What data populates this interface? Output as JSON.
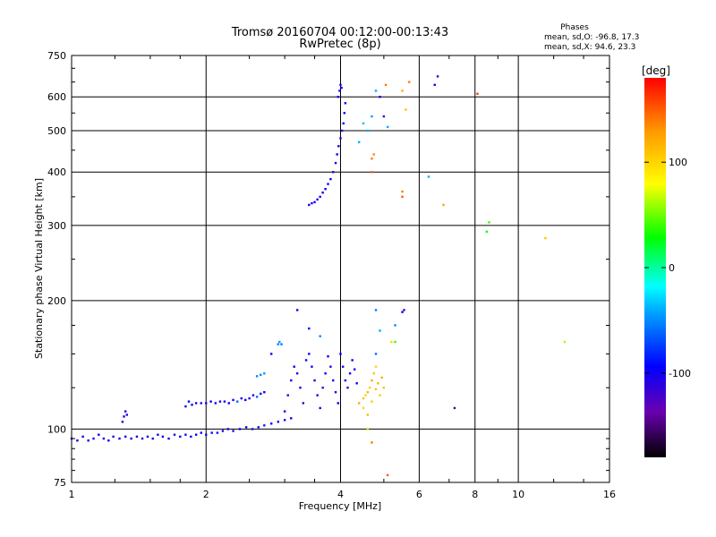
{
  "chart_data": {
    "type": "scatter",
    "title": "Tromsø 20160704 00:12:00-00:13:43",
    "subtitle": "RwPretec (8p)",
    "stats_title": "Phases",
    "stats_line1": "mean, sd,O: -96.8, 17.3",
    "stats_line2": "mean, sd,X:  94.6, 23.3",
    "xlabel": "Frequency [MHz]",
    "ylabel": "Stationary phase Virtual Height [km]",
    "xscale": "log",
    "yscale": "log",
    "xlim": [
      1,
      16
    ],
    "ylim": [
      75,
      750
    ],
    "x_ticks": [
      {
        "v": 1,
        "label": "1"
      },
      {
        "v": 2,
        "label": "2"
      },
      {
        "v": 4,
        "label": "4"
      },
      {
        "v": 6,
        "label": "6"
      },
      {
        "v": 8,
        "label": "8"
      },
      {
        "v": 10,
        "label": "10"
      },
      {
        "v": 16,
        "label": "16"
      }
    ],
    "y_ticks": [
      {
        "v": 75,
        "label": "75"
      },
      {
        "v": 100,
        "label": "100"
      },
      {
        "v": 200,
        "label": "200"
      },
      {
        "v": 300,
        "label": "300"
      },
      {
        "v": 400,
        "label": "400"
      },
      {
        "v": 500,
        "label": "500"
      },
      {
        "v": 600,
        "label": "600"
      },
      {
        "v": 750,
        "label": "750"
      }
    ],
    "grid": true,
    "colorbar": {
      "label": "[deg]",
      "range": [
        -180,
        180
      ],
      "ticks": [
        {
          "v": 100,
          "label": "100"
        },
        {
          "v": 0,
          "label": "0"
        },
        {
          "v": -100,
          "label": "-100"
        }
      ]
    },
    "points": [
      [
        1.0,
        95,
        -105
      ],
      [
        1.03,
        94,
        -100
      ],
      [
        1.06,
        96,
        -95
      ],
      [
        1.09,
        94,
        -110
      ],
      [
        1.12,
        95,
        -100
      ],
      [
        1.15,
        97,
        -95
      ],
      [
        1.18,
        95,
        -105
      ],
      [
        1.21,
        94,
        -100
      ],
      [
        1.24,
        96,
        -110
      ],
      [
        1.28,
        95,
        -95
      ],
      [
        1.32,
        96,
        -100
      ],
      [
        1.36,
        95,
        -105
      ],
      [
        1.4,
        96,
        -100
      ],
      [
        1.44,
        95,
        -110
      ],
      [
        1.48,
        96,
        -95
      ],
      [
        1.52,
        95,
        -100
      ],
      [
        1.56,
        97,
        -105
      ],
      [
        1.6,
        96,
        -100
      ],
      [
        1.65,
        95,
        -95
      ],
      [
        1.7,
        97,
        -110
      ],
      [
        1.75,
        96,
        -100
      ],
      [
        1.8,
        97,
        -105
      ],
      [
        1.85,
        96,
        -100
      ],
      [
        1.9,
        97,
        -95
      ],
      [
        1.95,
        98,
        -100
      ],
      [
        2.0,
        97,
        -105
      ],
      [
        2.06,
        98,
        -100
      ],
      [
        2.12,
        98,
        -90
      ],
      [
        2.18,
        99,
        -100
      ],
      [
        2.24,
        100,
        -95
      ],
      [
        2.3,
        99,
        -110
      ],
      [
        2.38,
        100,
        -100
      ],
      [
        2.46,
        101,
        -95
      ],
      [
        2.54,
        100,
        -105
      ],
      [
        2.62,
        101,
        -90
      ],
      [
        2.7,
        102,
        -85
      ],
      [
        2.8,
        103,
        -100
      ],
      [
        2.9,
        104,
        -95
      ],
      [
        3.0,
        105,
        -105
      ],
      [
        3.1,
        106,
        -100
      ],
      [
        1.3,
        104,
        -100
      ],
      [
        1.31,
        107,
        -105
      ],
      [
        1.32,
        110,
        -100
      ],
      [
        1.33,
        108,
        -110
      ],
      [
        1.8,
        113,
        -100
      ],
      [
        1.83,
        116,
        -95
      ],
      [
        1.86,
        114,
        -105
      ],
      [
        1.9,
        115,
        -100
      ],
      [
        1.95,
        115,
        -110
      ],
      [
        2.0,
        115,
        -100
      ],
      [
        2.05,
        116,
        -95
      ],
      [
        2.1,
        115,
        -100
      ],
      [
        2.15,
        116,
        -105
      ],
      [
        2.2,
        116,
        -100
      ],
      [
        2.25,
        115,
        -95
      ],
      [
        2.3,
        117,
        -100
      ],
      [
        2.35,
        116,
        -60
      ],
      [
        2.4,
        118,
        -100
      ],
      [
        2.45,
        117,
        -95
      ],
      [
        2.5,
        118,
        -105
      ],
      [
        2.55,
        120,
        -100
      ],
      [
        2.6,
        119,
        -60
      ],
      [
        2.65,
        121,
        -100
      ],
      [
        2.7,
        122,
        -95
      ],
      [
        2.6,
        133,
        -50
      ],
      [
        2.65,
        134,
        -50
      ],
      [
        2.7,
        135,
        -45
      ],
      [
        2.8,
        150,
        -100
      ],
      [
        2.9,
        158,
        -50
      ],
      [
        2.92,
        160,
        -45
      ],
      [
        2.95,
        158,
        -55
      ],
      [
        3.0,
        110,
        -100
      ],
      [
        3.05,
        120,
        -110
      ],
      [
        3.1,
        130,
        -100
      ],
      [
        3.15,
        140,
        -95
      ],
      [
        3.2,
        135,
        -105
      ],
      [
        3.25,
        125,
        -100
      ],
      [
        3.3,
        115,
        -120
      ],
      [
        3.35,
        145,
        -100
      ],
      [
        3.4,
        150,
        -95
      ],
      [
        3.45,
        140,
        -105
      ],
      [
        3.5,
        130,
        -100
      ],
      [
        3.55,
        120,
        -110
      ],
      [
        3.6,
        112,
        -100
      ],
      [
        3.65,
        125,
        -120
      ],
      [
        3.7,
        135,
        -100
      ],
      [
        3.75,
        148,
        -95
      ],
      [
        3.8,
        140,
        -105
      ],
      [
        3.85,
        130,
        -100
      ],
      [
        3.9,
        122,
        -110
      ],
      [
        3.95,
        115,
        -100
      ],
      [
        4.0,
        150,
        -95
      ],
      [
        4.05,
        140,
        -105
      ],
      [
        4.1,
        130,
        -100
      ],
      [
        4.15,
        125,
        -110
      ],
      [
        4.2,
        135,
        -100
      ],
      [
        4.25,
        145,
        -95
      ],
      [
        4.3,
        138,
        -105
      ],
      [
        4.35,
        128,
        -100
      ],
      [
        3.2,
        190,
        -100
      ],
      [
        3.4,
        172,
        -95
      ],
      [
        3.6,
        165,
        -50
      ],
      [
        4.4,
        115,
        120
      ],
      [
        4.5,
        118,
        110
      ],
      [
        4.55,
        120,
        100
      ],
      [
        4.6,
        122,
        115
      ],
      [
        4.65,
        125,
        105
      ],
      [
        4.7,
        130,
        120
      ],
      [
        4.75,
        135,
        110
      ],
      [
        4.8,
        140,
        100
      ],
      [
        4.85,
        128,
        115
      ],
      [
        4.9,
        120,
        105
      ],
      [
        4.95,
        132,
        120
      ],
      [
        5.0,
        125,
        110
      ],
      [
        4.5,
        112,
        100
      ],
      [
        4.6,
        108,
        115
      ],
      [
        4.7,
        116,
        105
      ],
      [
        4.8,
        124,
        110
      ],
      [
        4.7,
        93,
        140
      ],
      [
        4.6,
        100,
        60
      ],
      [
        5.2,
        160,
        100
      ],
      [
        5.1,
        78,
        150
      ],
      [
        4.8,
        150,
        -60
      ],
      [
        4.9,
        170,
        -40
      ],
      [
        5.3,
        160,
        40
      ],
      [
        5.3,
        175,
        -50
      ],
      [
        4.8,
        190,
        -55
      ],
      [
        5.5,
        188,
        -100
      ],
      [
        5.55,
        190,
        -110
      ],
      [
        7.2,
        112,
        -150
      ],
      [
        8.5,
        290,
        30
      ],
      [
        8.6,
        305,
        40
      ],
      [
        11.5,
        280,
        110
      ],
      [
        12.7,
        160,
        60
      ],
      [
        3.4,
        335,
        -100
      ],
      [
        3.45,
        338,
        -105
      ],
      [
        3.5,
        340,
        -95
      ],
      [
        3.55,
        345,
        -100
      ],
      [
        3.6,
        350,
        -110
      ],
      [
        3.65,
        358,
        -100
      ],
      [
        3.7,
        365,
        -95
      ],
      [
        3.75,
        375,
        -105
      ],
      [
        3.8,
        385,
        -100
      ],
      [
        3.85,
        400,
        -110
      ],
      [
        3.9,
        420,
        -100
      ],
      [
        3.93,
        440,
        -95
      ],
      [
        3.96,
        460,
        -105
      ],
      [
        4.0,
        480,
        -100
      ],
      [
        4.03,
        500,
        -110
      ],
      [
        4.06,
        520,
        -100
      ],
      [
        4.08,
        550,
        -95
      ],
      [
        4.1,
        580,
        -105
      ],
      [
        3.95,
        600,
        -100
      ],
      [
        3.98,
        620,
        -110
      ],
      [
        4.0,
        640,
        -100
      ],
      [
        4.02,
        630,
        -95
      ],
      [
        4.4,
        470,
        -40
      ],
      [
        4.5,
        520,
        -35
      ],
      [
        4.6,
        500,
        -40
      ],
      [
        4.7,
        540,
        -45
      ],
      [
        4.8,
        620,
        -40
      ],
      [
        4.9,
        600,
        -100
      ],
      [
        5.0,
        540,
        -110
      ],
      [
        5.1,
        510,
        -40
      ],
      [
        5.05,
        640,
        140
      ],
      [
        5.5,
        620,
        120
      ],
      [
        5.6,
        560,
        110
      ],
      [
        5.5,
        360,
        140
      ],
      [
        5.5,
        350,
        150
      ],
      [
        6.3,
        390,
        -40
      ],
      [
        6.5,
        640,
        -100
      ],
      [
        6.6,
        670,
        -110
      ],
      [
        6.8,
        335,
        125
      ],
      [
        8.1,
        610,
        160
      ],
      [
        5.7,
        650,
        140
      ],
      [
        4.7,
        400,
        150
      ],
      [
        4.7,
        430,
        140
      ],
      [
        4.75,
        440,
        135
      ]
    ]
  }
}
